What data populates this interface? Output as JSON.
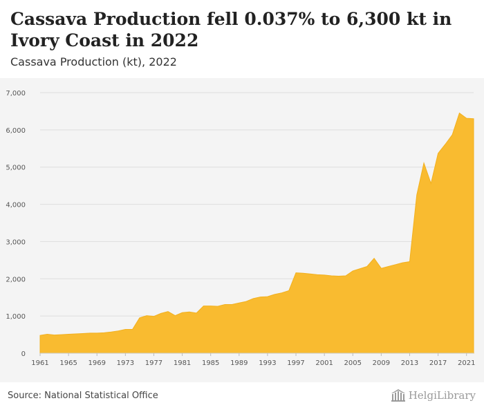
{
  "header": {
    "title": "Cassava Production fell 0.037% to 6,300 kt in Ivory Coast in 2022",
    "subtitle": "Cassava Production (kt), 2022"
  },
  "footer": {
    "source": "Source: National Statistical Office",
    "brand": "HelgiLibrary"
  },
  "colors": {
    "area_fill": "#f9bb30",
    "area_stroke": "#f2b01e",
    "grid": "#dddddd",
    "plot_bg": "#f4f4f4",
    "axis_text": "#555555"
  },
  "icons": {
    "brand": "helgi-library-logo-icon"
  },
  "chart_data": {
    "type": "area",
    "title": "Cassava Production fell 0.037% to 6,300 kt in Ivory Coast in 2022",
    "subtitle": "Cassava Production (kt), 2022",
    "xlabel": "",
    "ylabel": "",
    "ylim": [
      0,
      7000
    ],
    "grid": true,
    "legend": "none",
    "y_ticks": [
      {
        "value": 0,
        "label": "0"
      },
      {
        "value": 1000,
        "label": "1,000"
      },
      {
        "value": 2000,
        "label": "2,000"
      },
      {
        "value": 3000,
        "label": "3,000"
      },
      {
        "value": 4000,
        "label": "4,000"
      },
      {
        "value": 5000,
        "label": "5,000"
      },
      {
        "value": 6000,
        "label": "6,000"
      },
      {
        "value": 7000,
        "label": "7,000"
      }
    ],
    "x_ticks": [
      1961,
      1965,
      1969,
      1973,
      1977,
      1981,
      1985,
      1989,
      1993,
      1997,
      2001,
      2005,
      2009,
      2013,
      2017,
      2021
    ],
    "series": [
      {
        "x": [
          1961,
          1962,
          1963,
          1964,
          1965,
          1966,
          1967,
          1968,
          1969,
          1970,
          1971,
          1972,
          1973,
          1974,
          1975,
          1976,
          1977,
          1978,
          1979,
          1980,
          1981,
          1982,
          1983,
          1984,
          1985,
          1986,
          1987,
          1988,
          1989,
          1990,
          1991,
          1992,
          1993,
          1994,
          1995,
          1996,
          1997,
          1998,
          1999,
          2000,
          2001,
          2002,
          2003,
          2004,
          2005,
          2006,
          2007,
          2008,
          2009,
          2010,
          2011,
          2012,
          2013,
          2014,
          2015,
          2016,
          2017,
          2018,
          2019,
          2020,
          2021,
          2022
        ],
        "values": [
          480,
          510,
          490,
          500,
          510,
          520,
          530,
          540,
          540,
          550,
          570,
          600,
          640,
          640,
          950,
          1010,
          990,
          1070,
          1120,
          1010,
          1090,
          1110,
          1080,
          1270,
          1270,
          1260,
          1310,
          1310,
          1350,
          1390,
          1470,
          1510,
          1520,
          1580,
          1620,
          1680,
          2160,
          2150,
          2130,
          2110,
          2100,
          2080,
          2070,
          2080,
          2210,
          2270,
          2330,
          2550,
          2280,
          2330,
          2380,
          2430,
          2460,
          4250,
          5110,
          4560,
          5370,
          5610,
          5870,
          6450,
          6310,
          6300
        ]
      }
    ]
  }
}
